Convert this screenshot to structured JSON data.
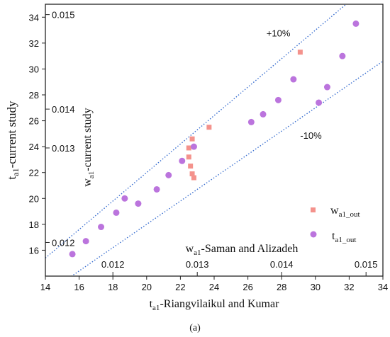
{
  "chart_data": {
    "type": "scatter",
    "caption": "(a)",
    "x_axis": {
      "label_main": "t",
      "label_sub": "a1",
      "label_rest": "-Riangvilaikul and Kumar",
      "range": [
        14,
        34
      ],
      "ticks": [
        "14",
        "16",
        "18",
        "20",
        "22",
        "24",
        "26",
        "28",
        "30",
        "32",
        "34"
      ]
    },
    "y_axis": {
      "label_main": "t",
      "label_sub": "a1",
      "label_rest": "-current study",
      "range": [
        14,
        35
      ],
      "ticks": [
        "16",
        "18",
        "20",
        "22",
        "24",
        "26",
        "28",
        "30",
        "32",
        "34"
      ]
    },
    "secondary_x_axis": {
      "label_main": "w",
      "label_sub": "a1",
      "label_rest": "-Saman and Alizadeh",
      "ticks": [
        {
          "x": 18,
          "label": "0.012"
        },
        {
          "x": 23,
          "label": "0.013"
        },
        {
          "x": 28,
          "label": "0.014"
        },
        {
          "x": 33,
          "label": "0.015"
        }
      ]
    },
    "secondary_y_axis": {
      "label_main": "w",
      "label_sub": "a1",
      "label_rest": "-current study",
      "ticks": [
        {
          "y": 16.6,
          "label": "0.012"
        },
        {
          "y": 23.9,
          "label": "0.013"
        },
        {
          "y": 26.9,
          "label": "0.014"
        },
        {
          "y": 34.2,
          "label": "0.015"
        }
      ]
    },
    "reference_lines": [
      {
        "label": "+10%",
        "factor": 1.1,
        "color": "#3a6fd0"
      },
      {
        "label": "-10%",
        "factor": 0.9,
        "color": "#3a6fd0"
      }
    ],
    "series": [
      {
        "name_main": "w",
        "name_sub": "a1_out",
        "marker": "square",
        "color": "#f4928c",
        "points": [
          [
            22.5,
            23.9
          ],
          [
            22.5,
            23.2
          ],
          [
            22.6,
            22.5
          ],
          [
            22.7,
            21.9
          ],
          [
            22.8,
            21.6
          ],
          [
            22.7,
            24.6
          ],
          [
            23.7,
            25.5
          ],
          [
            29.1,
            31.3
          ]
        ]
      },
      {
        "name_main": "t",
        "name_sub": "a1_out",
        "marker": "circle",
        "color": "#bb74dd",
        "points": [
          [
            15.6,
            15.7
          ],
          [
            16.4,
            16.7
          ],
          [
            17.3,
            17.8
          ],
          [
            18.2,
            18.9
          ],
          [
            18.7,
            20.0
          ],
          [
            19.5,
            19.6
          ],
          [
            20.6,
            20.7
          ],
          [
            21.3,
            21.8
          ],
          [
            22.1,
            22.9
          ],
          [
            22.8,
            24.0
          ],
          [
            26.2,
            25.9
          ],
          [
            26.9,
            26.5
          ],
          [
            27.8,
            27.6
          ],
          [
            28.7,
            29.2
          ],
          [
            30.2,
            27.4
          ],
          [
            30.7,
            28.6
          ],
          [
            31.6,
            31.0
          ],
          [
            32.4,
            33.5
          ]
        ]
      }
    ]
  }
}
